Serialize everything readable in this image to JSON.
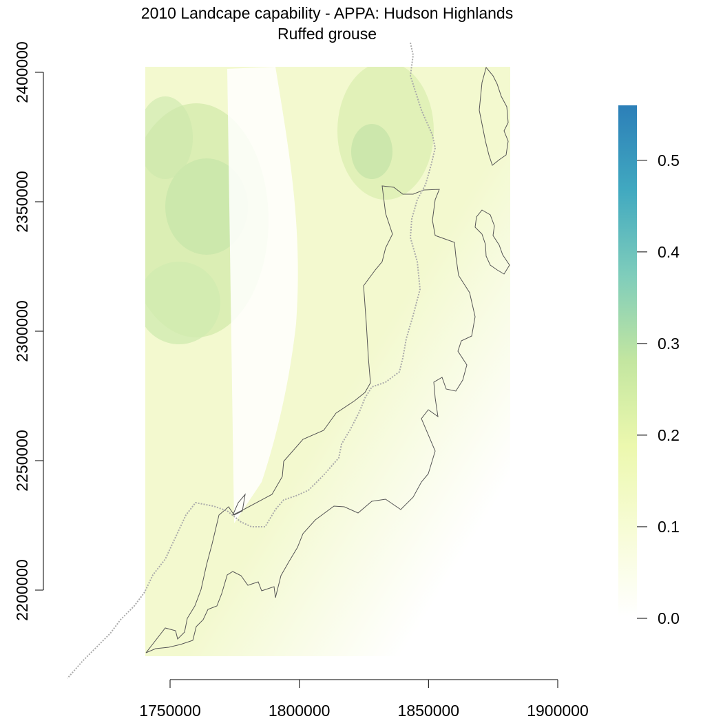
{
  "title": {
    "line1": "2010 Landcape capability - APPA: Hudson Highlands",
    "line2": "Ruffed grouse"
  },
  "map": {
    "x_axis": {
      "range": [
        1740000,
        1900000
      ],
      "ticks": [
        1750000,
        1800000,
        1850000,
        1900000
      ],
      "tick_labels": [
        "1750000",
        "1800000",
        "1850000",
        "1900000"
      ]
    },
    "y_axis": {
      "range": [
        2170000,
        2400000
      ],
      "ticks": [
        2200000,
        2250000,
        2300000,
        2350000,
        2400000
      ],
      "tick_labels": [
        "2200000",
        "2250000",
        "2300000",
        "2350000",
        "2400000"
      ]
    },
    "raster_extent": {
      "x": [
        1741000,
        1882000
      ],
      "y": [
        2173000,
        2401000
      ]
    },
    "layers": [
      {
        "name": "landscape-capability-raster",
        "kind": "raster"
      },
      {
        "name": "appa-boundary",
        "kind": "line",
        "style": "solid dark gray"
      },
      {
        "name": "state-border",
        "kind": "line",
        "style": "dotted gray"
      }
    ]
  },
  "legend": {
    "range": [
      0,
      0.56
    ],
    "ticks": [
      0.0,
      0.1,
      0.2,
      0.3,
      0.4,
      0.5
    ],
    "tick_labels": [
      "0.0",
      "0.1",
      "0.2",
      "0.3",
      "0.4",
      "0.5"
    ],
    "colors": [
      "#ffffff",
      "#f7fcd6",
      "#ecf8ae",
      "#c3e6a0",
      "#7fcdbb",
      "#41a9c0",
      "#2c7fb8"
    ]
  }
}
